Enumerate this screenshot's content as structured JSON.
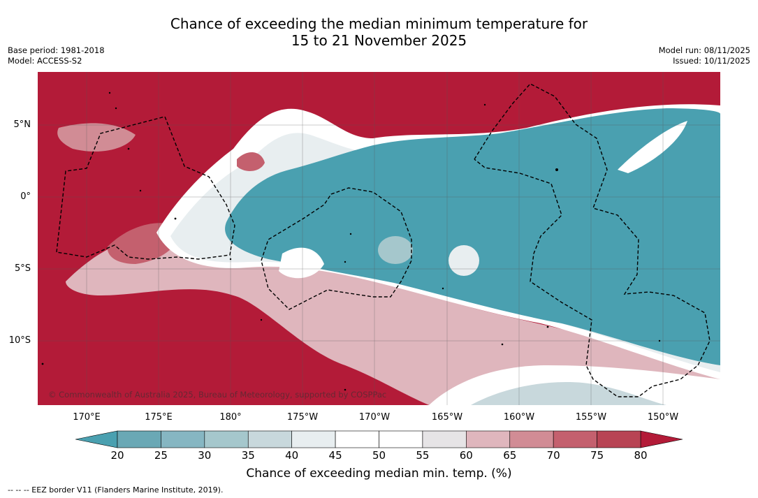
{
  "title_line1": "Chance of exceeding the median minimum temperature for",
  "title_line2": "15 to 21 November 2025",
  "meta": {
    "base_period": "Base period: 1981-2018",
    "model": "Model: ACCESS-S2",
    "model_run": "Model run: 08/11/2025",
    "issued": "Issued: 10/11/2025"
  },
  "map": {
    "copyright": "© Commonwealth of Australia 2025, Bureau of Meteorology, supported by COSPPac",
    "lat_labels": [
      "5°N",
      "0°",
      "5°S",
      "10°S"
    ],
    "lon_labels": [
      "170°E",
      "175°E",
      "180°",
      "175°W",
      "170°W",
      "165°W",
      "160°W",
      "155°W",
      "150°W"
    ]
  },
  "colorbar": {
    "label": "Chance of exceeding median min. temp. (%)",
    "ticks": [
      "20",
      "25",
      "30",
      "35",
      "40",
      "45",
      "50",
      "55",
      "60",
      "65",
      "70",
      "75",
      "80"
    ],
    "colors": [
      "#6aa8b5",
      "#86b6c2",
      "#a5c7cc",
      "#c8d8dc",
      "#e8eef0",
      "#ffffff",
      "#ffffff",
      "#e6e4e6",
      "#dfb6bd",
      "#d18c95",
      "#c4606e",
      "#b84454"
    ],
    "low_color": "#4aa0b0",
    "high_color": "#b31b38"
  },
  "legend_footer": "--  --  -- EEZ border V11 (Flanders Marine Institute, 2019)."
}
